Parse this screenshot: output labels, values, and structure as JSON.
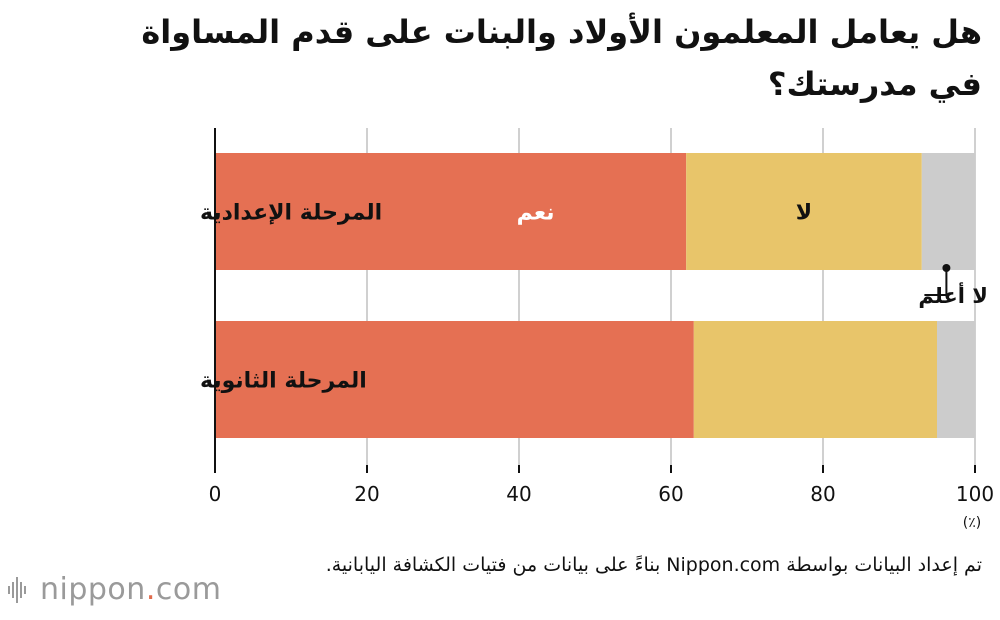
{
  "title": "هل يعامل المعلمون الأولاد والبنات على قدم المساواة في مدرستك؟",
  "source": "تم إعداد البيانات بواسطة Nippon.com بناءً على بيانات من فتيات الكشافة اليابانية.",
  "logo": {
    "name": "nippon",
    "dot": ".",
    "suffix": "com"
  },
  "colors": {
    "yes": "#e57053",
    "no": "#e8c56a",
    "dont_know": "#cccccc",
    "grid": "#d0d0d0"
  },
  "chart_data": {
    "type": "bar",
    "orientation": "horizontal",
    "stacked": true,
    "categories": [
      "المرحلة الإعدادية",
      "المرحلة الثانوية"
    ],
    "series": [
      {
        "name": "نعم",
        "values": [
          62,
          63
        ]
      },
      {
        "name": "لا",
        "values": [
          31,
          32
        ]
      },
      {
        "name": "لا أعلم",
        "values": [
          7,
          5
        ]
      }
    ],
    "xlim": [
      0,
      100
    ],
    "xticks": [
      0,
      20,
      40,
      60,
      80,
      100
    ],
    "xunit": "(٪)",
    "grid": true,
    "legend": "inline labels on first bar"
  }
}
